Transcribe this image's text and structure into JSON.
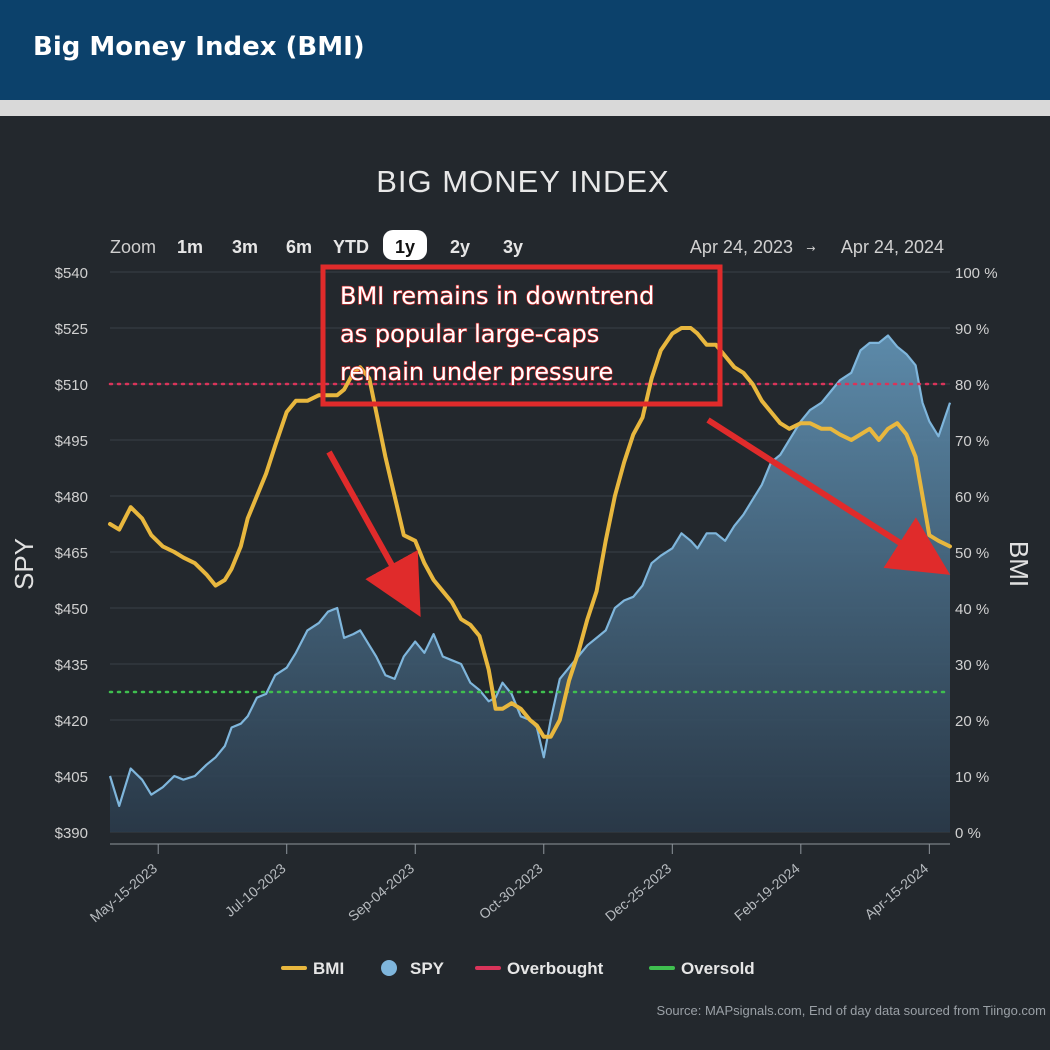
{
  "header": {
    "title": "Big Money Index (BMI)"
  },
  "chart": {
    "title": "BIG MONEY INDEX",
    "zoom_label": "Zoom",
    "zoom_options": [
      "1m",
      "3m",
      "6m",
      "YTD",
      "1y",
      "2y",
      "3y"
    ],
    "zoom_selected": "1y",
    "range_start": "Apr 24, 2023",
    "range_arrow": "→",
    "range_end": "Apr 24, 2024",
    "annotation": {
      "lines": [
        "BMI remains in downtrend",
        "as popular large-caps",
        "remain under pressure"
      ]
    },
    "legend": [
      {
        "name": "BMI",
        "color": "#e8b73e",
        "marker": "line"
      },
      {
        "name": "SPY",
        "color": "#7fb6dc",
        "marker": "circle"
      },
      {
        "name": "Overbought",
        "color": "#d9345a",
        "marker": "line"
      },
      {
        "name": "Oversold",
        "color": "#3fbf4f",
        "marker": "line"
      }
    ],
    "source": "Source: MAPsignals.com, End of day data sourced from Tiingo.com",
    "colors": {
      "bmi": "#e8b73e",
      "spy_line": "#7fb6dc",
      "spy_fill_top": "#5f8fb0",
      "spy_fill_bottom": "#2a3a4a",
      "overbought": "#d9345a",
      "oversold": "#3fbf4f",
      "annotation_border": "#e02b2b",
      "arrow": "#e02b2b"
    }
  },
  "chart_data": {
    "type": "line",
    "title": "BIG MONEY INDEX",
    "left_axis": {
      "label": "SPY",
      "range": [
        390,
        540
      ],
      "ticks": [
        540,
        525,
        510,
        495,
        480,
        465,
        450,
        435,
        420,
        405,
        390
      ],
      "tick_labels": [
        "$540",
        "$525",
        "$510",
        "$495",
        "$480",
        "$465",
        "$450",
        "$435",
        "$420",
        "$405",
        "$390"
      ]
    },
    "right_axis": {
      "label": "BMI",
      "range": [
        0,
        100
      ],
      "ticks": [
        100,
        90,
        80,
        70,
        60,
        50,
        40,
        30,
        20,
        10,
        0
      ],
      "tick_labels": [
        "100 %",
        "90 %",
        "80 %",
        "70 %",
        "60 %",
        "50 %",
        "40 %",
        "30 %",
        "20 %",
        "10 %",
        "0 %"
      ]
    },
    "x_axis": {
      "range": [
        "2023-04-24",
        "2024-04-24"
      ],
      "ticks": [
        "2023-05-15",
        "2023-07-10",
        "2023-09-04",
        "2023-10-30",
        "2023-12-25",
        "2024-02-19",
        "2024-04-15"
      ],
      "tick_labels": [
        "May-15-2023",
        "Jul-10-2023",
        "Sep-04-2023",
        "Oct-30-2023",
        "Dec-25-2023",
        "Feb-19-2024",
        "Apr-15-2024"
      ]
    },
    "overbought_level": 80,
    "oversold_level": 25,
    "grid": true,
    "legend_position": "bottom",
    "series": [
      {
        "name": "BMI",
        "axis": "right",
        "points": [
          [
            "2023-04-24",
            55
          ],
          [
            "2023-04-28",
            54
          ],
          [
            "2023-05-03",
            58
          ],
          [
            "2023-05-08",
            56
          ],
          [
            "2023-05-12",
            53
          ],
          [
            "2023-05-17",
            51
          ],
          [
            "2023-05-22",
            50
          ],
          [
            "2023-05-26",
            49
          ],
          [
            "2023-05-31",
            48
          ],
          [
            "2023-06-05",
            46
          ],
          [
            "2023-06-09",
            44
          ],
          [
            "2023-06-13",
            45
          ],
          [
            "2023-06-16",
            47
          ],
          [
            "2023-06-20",
            51
          ],
          [
            "2023-06-23",
            56
          ],
          [
            "2023-06-27",
            60
          ],
          [
            "2023-07-01",
            64
          ],
          [
            "2023-07-05",
            69
          ],
          [
            "2023-07-10",
            75
          ],
          [
            "2023-07-14",
            77
          ],
          [
            "2023-07-19",
            77
          ],
          [
            "2023-07-24",
            78
          ],
          [
            "2023-07-28",
            78
          ],
          [
            "2023-08-01",
            78
          ],
          [
            "2023-08-04",
            79
          ],
          [
            "2023-08-08",
            82
          ],
          [
            "2023-08-11",
            83
          ],
          [
            "2023-08-15",
            81
          ],
          [
            "2023-08-18",
            75
          ],
          [
            "2023-08-22",
            67
          ],
          [
            "2023-08-26",
            60
          ],
          [
            "2023-08-30",
            53
          ],
          [
            "2023-09-04",
            52
          ],
          [
            "2023-09-08",
            48
          ],
          [
            "2023-09-12",
            45
          ],
          [
            "2023-09-16",
            43
          ],
          [
            "2023-09-20",
            41
          ],
          [
            "2023-09-24",
            38
          ],
          [
            "2023-09-28",
            37
          ],
          [
            "2023-10-02",
            35
          ],
          [
            "2023-10-06",
            29
          ],
          [
            "2023-10-09",
            22
          ],
          [
            "2023-10-12",
            22
          ],
          [
            "2023-10-16",
            23
          ],
          [
            "2023-10-20",
            22
          ],
          [
            "2023-10-24",
            20
          ],
          [
            "2023-10-27",
            19
          ],
          [
            "2023-10-30",
            17
          ],
          [
            "2023-11-02",
            17
          ],
          [
            "2023-11-06",
            20
          ],
          [
            "2023-11-10",
            27
          ],
          [
            "2023-11-14",
            32
          ],
          [
            "2023-11-18",
            38
          ],
          [
            "2023-11-22",
            43
          ],
          [
            "2023-11-26",
            52
          ],
          [
            "2023-11-30",
            60
          ],
          [
            "2023-12-04",
            66
          ],
          [
            "2023-12-08",
            71
          ],
          [
            "2023-12-12",
            74
          ],
          [
            "2023-12-16",
            81
          ],
          [
            "2023-12-20",
            86
          ],
          [
            "2023-12-25",
            89
          ],
          [
            "2023-12-29",
            90
          ],
          [
            "2024-01-02",
            90
          ],
          [
            "2024-01-05",
            89
          ],
          [
            "2024-01-09",
            87
          ],
          [
            "2024-01-13",
            87
          ],
          [
            "2024-01-17",
            85
          ],
          [
            "2024-01-21",
            83
          ],
          [
            "2024-01-25",
            82
          ],
          [
            "2024-01-29",
            80
          ],
          [
            "2024-02-02",
            77
          ],
          [
            "2024-02-06",
            75
          ],
          [
            "2024-02-10",
            73
          ],
          [
            "2024-02-14",
            72
          ],
          [
            "2024-02-19",
            73
          ],
          [
            "2024-02-23",
            73
          ],
          [
            "2024-02-28",
            72
          ],
          [
            "2024-03-03",
            72
          ],
          [
            "2024-03-07",
            71
          ],
          [
            "2024-03-12",
            70
          ],
          [
            "2024-03-16",
            71
          ],
          [
            "2024-03-20",
            72
          ],
          [
            "2024-03-24",
            70
          ],
          [
            "2024-03-28",
            72
          ],
          [
            "2024-04-01",
            73
          ],
          [
            "2024-04-05",
            71
          ],
          [
            "2024-04-09",
            67
          ],
          [
            "2024-04-12",
            60
          ],
          [
            "2024-04-15",
            53
          ],
          [
            "2024-04-19",
            52
          ],
          [
            "2024-04-24",
            51
          ]
        ]
      },
      {
        "name": "SPY",
        "axis": "left",
        "points": [
          [
            "2023-04-24",
            405
          ],
          [
            "2023-04-28",
            397
          ],
          [
            "2023-05-03",
            407
          ],
          [
            "2023-05-08",
            404
          ],
          [
            "2023-05-12",
            400
          ],
          [
            "2023-05-17",
            402
          ],
          [
            "2023-05-22",
            405
          ],
          [
            "2023-05-26",
            404
          ],
          [
            "2023-05-31",
            405
          ],
          [
            "2023-06-05",
            408
          ],
          [
            "2023-06-09",
            410
          ],
          [
            "2023-06-13",
            413
          ],
          [
            "2023-06-16",
            418
          ],
          [
            "2023-06-20",
            419
          ],
          [
            "2023-06-23",
            421
          ],
          [
            "2023-06-27",
            426
          ],
          [
            "2023-07-01",
            427
          ],
          [
            "2023-07-05",
            432
          ],
          [
            "2023-07-10",
            434
          ],
          [
            "2023-07-14",
            438
          ],
          [
            "2023-07-19",
            444
          ],
          [
            "2023-07-24",
            446
          ],
          [
            "2023-07-28",
            449
          ],
          [
            "2023-08-01",
            450
          ],
          [
            "2023-08-04",
            442
          ],
          [
            "2023-08-08",
            443
          ],
          [
            "2023-08-11",
            444
          ],
          [
            "2023-08-15",
            440
          ],
          [
            "2023-08-18",
            437
          ],
          [
            "2023-08-22",
            432
          ],
          [
            "2023-08-26",
            431
          ],
          [
            "2023-08-30",
            437
          ],
          [
            "2023-09-04",
            441
          ],
          [
            "2023-09-08",
            438
          ],
          [
            "2023-09-12",
            443
          ],
          [
            "2023-09-16",
            437
          ],
          [
            "2023-09-20",
            436
          ],
          [
            "2023-09-24",
            435
          ],
          [
            "2023-09-28",
            430
          ],
          [
            "2023-10-02",
            428
          ],
          [
            "2023-10-06",
            425
          ],
          [
            "2023-10-09",
            426
          ],
          [
            "2023-10-12",
            430
          ],
          [
            "2023-10-16",
            427
          ],
          [
            "2023-10-20",
            421
          ],
          [
            "2023-10-24",
            420
          ],
          [
            "2023-10-27",
            418
          ],
          [
            "2023-10-30",
            410
          ],
          [
            "2023-11-02",
            420
          ],
          [
            "2023-11-06",
            431
          ],
          [
            "2023-11-10",
            434
          ],
          [
            "2023-11-14",
            437
          ],
          [
            "2023-11-18",
            440
          ],
          [
            "2023-11-22",
            442
          ],
          [
            "2023-11-26",
            444
          ],
          [
            "2023-11-30",
            450
          ],
          [
            "2023-12-04",
            452
          ],
          [
            "2023-12-08",
            453
          ],
          [
            "2023-12-12",
            456
          ],
          [
            "2023-12-16",
            462
          ],
          [
            "2023-12-20",
            464
          ],
          [
            "2023-12-25",
            466
          ],
          [
            "2023-12-29",
            470
          ],
          [
            "2024-01-02",
            468
          ],
          [
            "2024-01-05",
            466
          ],
          [
            "2024-01-09",
            470
          ],
          [
            "2024-01-13",
            470
          ],
          [
            "2024-01-17",
            468
          ],
          [
            "2024-01-21",
            472
          ],
          [
            "2024-01-25",
            475
          ],
          [
            "2024-01-29",
            479
          ],
          [
            "2024-02-02",
            483
          ],
          [
            "2024-02-06",
            489
          ],
          [
            "2024-02-10",
            491
          ],
          [
            "2024-02-14",
            495
          ],
          [
            "2024-02-19",
            500
          ],
          [
            "2024-02-23",
            503
          ],
          [
            "2024-02-28",
            505
          ],
          [
            "2024-03-03",
            508
          ],
          [
            "2024-03-07",
            511
          ],
          [
            "2024-03-12",
            513
          ],
          [
            "2024-03-16",
            519
          ],
          [
            "2024-03-20",
            521
          ],
          [
            "2024-03-24",
            521
          ],
          [
            "2024-03-28",
            523
          ],
          [
            "2024-04-01",
            520
          ],
          [
            "2024-04-05",
            518
          ],
          [
            "2024-04-09",
            515
          ],
          [
            "2024-04-12",
            505
          ],
          [
            "2024-04-15",
            500
          ],
          [
            "2024-04-19",
            496
          ],
          [
            "2024-04-24",
            505
          ]
        ]
      }
    ]
  }
}
